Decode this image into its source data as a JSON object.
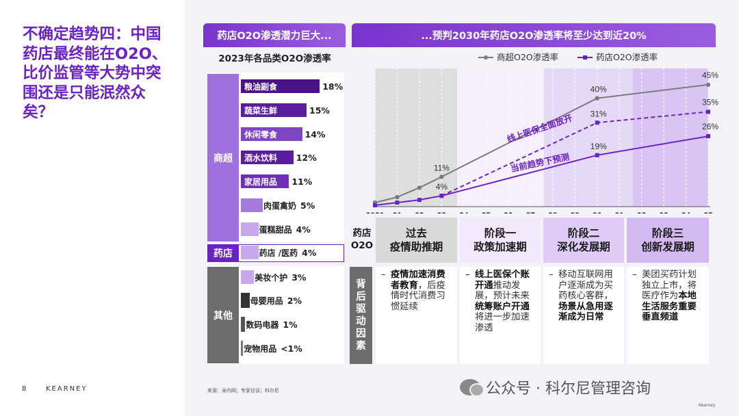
{
  "title": "不确定趋势四：中国药店最终能在O2O、比价监管等大势中突围还是只能泯然众矣？",
  "page_number": "8",
  "brand": "KEARNEY",
  "left_header": "药店O2O渗透潜力巨大...",
  "right_header": "...预判2030年药店O2O渗透率将至少达到近20%",
  "bar_subtitle": "2023年各品类O2O渗透率",
  "segments": {
    "supermarket": "商超",
    "pharmacy": "药店",
    "other": "其他"
  },
  "bars": [
    {
      "label": "粮油副食",
      "value": 18,
      "display": "18%",
      "color": "#4b1388"
    },
    {
      "label": "蔬菜生鲜",
      "value": 15,
      "display": "15%",
      "color": "#5a1d9e"
    },
    {
      "label": "休闲零食",
      "value": 14,
      "display": "14%",
      "color": "#7e45c4"
    },
    {
      "label": "酒水饮料",
      "value": 12,
      "display": "12%",
      "color": "#5a1d9e"
    },
    {
      "label": "家居用品",
      "value": 11,
      "display": "11%",
      "color": "#6d2fb7"
    },
    {
      "label": "肉蛋禽奶",
      "value": 5,
      "display": "5%",
      "color": "#a679de"
    },
    {
      "label": "蛋糕甜品",
      "value": 4,
      "display": "4%",
      "color": "#c6a9ec"
    },
    {
      "label": "药店 /医药",
      "value": 4,
      "display": "4%",
      "color": "#c6a9ec"
    },
    {
      "label": "美妆个护",
      "value": 3,
      "display": "3%",
      "color": "#c6a9ec"
    },
    {
      "label": "母婴用品",
      "value": 2,
      "display": "2%",
      "color": "#333333"
    },
    {
      "label": "数码电器",
      "value": 1,
      "display": "1%",
      "color": "#555555"
    },
    {
      "label": "宠物用品",
      "value": 0.5,
      "display": "<1%",
      "color": "#777777"
    }
  ],
  "chart_data": {
    "type": "line",
    "x": [
      "2020",
      "21",
      "22",
      "23",
      "24",
      "25",
      "26",
      "27",
      "28",
      "29",
      "30",
      "31",
      "32",
      "33",
      "34",
      "35"
    ],
    "series": [
      {
        "name": "商超O2O渗透率",
        "color": "#7b7b7b",
        "style": "solid",
        "points": [
          [
            2020,
            1.5
          ],
          [
            2021,
            3.5
          ],
          [
            2022,
            7
          ],
          [
            2023,
            11
          ],
          [
            2030,
            40
          ],
          [
            2035,
            45
          ]
        ]
      },
      {
        "name": "药店O2O渗透率",
        "variant": "upper",
        "color": "#6b22c4",
        "style": "dashed",
        "points": [
          [
            2023,
            4
          ],
          [
            2030,
            31
          ],
          [
            2035,
            35
          ]
        ]
      },
      {
        "name": "药店O2O渗透率",
        "variant": "lower",
        "color": "#6b22c4",
        "style": "solid",
        "points": [
          [
            2020,
            0.5
          ],
          [
            2021,
            1.5
          ],
          [
            2022,
            2.5
          ],
          [
            2023,
            4
          ],
          [
            2030,
            19
          ],
          [
            2035,
            26
          ]
        ]
      }
    ],
    "data_labels": [
      {
        "x": 2023,
        "y": 11,
        "text": "11%"
      },
      {
        "x": 2023,
        "y": 4,
        "text": "4%"
      },
      {
        "x": 2030,
        "y": 40,
        "text": "40%"
      },
      {
        "x": 2030,
        "y": 31,
        "text": "31%"
      },
      {
        "x": 2030,
        "y": 19,
        "text": "19%"
      },
      {
        "x": 2035,
        "y": 45,
        "text": "45%"
      },
      {
        "x": 2035,
        "y": 35,
        "text": "35%"
      },
      {
        "x": 2035,
        "y": 26,
        "text": "26%"
      }
    ],
    "annotations": [
      {
        "text": "线上医保全面放开",
        "color": "#6b22c4"
      },
      {
        "text": "当前趋势下预测",
        "color": "#6b22c4"
      }
    ],
    "xlim": [
      2020,
      2035
    ],
    "ylim": [
      0,
      50
    ],
    "legend": "top",
    "phase_bands": [
      {
        "from": 2020,
        "to": 2023.7,
        "color": "#dedede"
      },
      {
        "from": 2023.7,
        "to": 2027.6,
        "color": "#f6f0fd"
      },
      {
        "from": 2027.6,
        "to": 2031.6,
        "color": "#e6d8f7"
      },
      {
        "from": 2031.6,
        "to": 2035,
        "color": "#d9c5f3"
      }
    ]
  },
  "phases": {
    "row_label": "药店O2O",
    "items": [
      {
        "title": "过去",
        "subtitle": "疫情助推期",
        "bg": "#d9d9d9"
      },
      {
        "title": "阶段一",
        "subtitle": "政策加速期",
        "bg": "#f1e8fc"
      },
      {
        "title": "阶段二",
        "subtitle": "深化发展期",
        "bg": "#dfccf6"
      },
      {
        "title": "阶段三",
        "subtitle": "创新发展期",
        "bg": "#d3bbf1"
      }
    ]
  },
  "drivers_label": "背后驱动因素",
  "drivers": [
    {
      "parts": [
        {
          "text": "疫情加速消费者教育",
          "bold": true
        },
        {
          "text": "，后疫情时代消费习惯延续",
          "bold": false
        }
      ]
    },
    {
      "parts": [
        {
          "text": "线上医保个账开通",
          "bold": true
        },
        {
          "text": "推动发展，预计未来",
          "bold": false
        },
        {
          "text": "统筹账户开通",
          "bold": true
        },
        {
          "text": "将进一步加速渗透",
          "bold": false
        }
      ]
    },
    {
      "parts": [
        {
          "text": "移动互联网用户逐渐成为买药核心客群，",
          "bold": false
        },
        {
          "text": "场景从急用逐渐成为日常",
          "bold": true
        }
      ]
    },
    {
      "parts": [
        {
          "text": "美团买药计划独立上市，将医疗作为",
          "bold": false
        },
        {
          "text": "本地生活服务重要垂直频道",
          "bold": true
        }
      ]
    }
  ],
  "source": "来源：米内网；专家访谈；科尔尼",
  "watermark": "公众号 · 科尔尼管理咨询",
  "corner_brand": "Kearney"
}
